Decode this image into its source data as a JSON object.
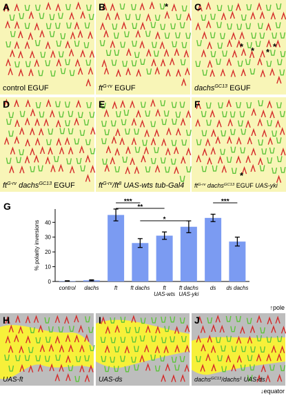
{
  "panels": [
    {
      "letter": "A",
      "caption": [
        {
          "text": "control EGUF",
          "italic": false,
          "sup": false
        }
      ]
    },
    {
      "letter": "B",
      "caption": [
        {
          "text": "ft",
          "italic": true,
          "sup": false
        },
        {
          "text": "G-rv",
          "italic": true,
          "sup": true
        },
        {
          "text": " EGUF",
          "italic": false,
          "sup": false
        }
      ],
      "stars": [
        "*"
      ]
    },
    {
      "letter": "C",
      "caption": [
        {
          "text": "dachs",
          "italic": true,
          "sup": false
        },
        {
          "text": "GC13",
          "italic": true,
          "sup": true
        },
        {
          "text": " EGUF",
          "italic": false,
          "sup": false
        }
      ],
      "stars": [
        "*",
        "*",
        "*",
        "*"
      ]
    },
    {
      "letter": "D",
      "caption": [
        {
          "text": "ft",
          "italic": true,
          "sup": false
        },
        {
          "text": "G-rv",
          "italic": true,
          "sup": true
        },
        {
          "text": " dachs",
          "italic": true,
          "sup": false
        },
        {
          "text": "GC13",
          "italic": true,
          "sup": true
        },
        {
          "text": " EGUF",
          "italic": false,
          "sup": false
        }
      ]
    },
    {
      "letter": "E",
      "caption": [
        {
          "text": "ft",
          "italic": true,
          "sup": false
        },
        {
          "text": "G-rv",
          "italic": true,
          "sup": true
        },
        {
          "text": "/ft",
          "italic": true,
          "sup": false
        },
        {
          "text": "8",
          "italic": true,
          "sup": true
        },
        {
          "text": " UAS-wts tub-Gal4",
          "italic": true,
          "sup": false
        }
      ]
    },
    {
      "letter": "F",
      "caption": [
        {
          "text": "ft",
          "italic": true,
          "sup": false
        },
        {
          "text": "G-rv",
          "italic": true,
          "sup": true
        },
        {
          "text": " dachs",
          "italic": true,
          "sup": false
        },
        {
          "text": "GC13",
          "italic": true,
          "sup": true
        },
        {
          "text": " EGUF ",
          "italic": false,
          "sup": false
        },
        {
          "text": "UAS-yki",
          "italic": true,
          "sup": false
        }
      ],
      "stars": [
        "*"
      ]
    }
  ],
  "chart_letter": "G",
  "chart_data": {
    "type": "bar",
    "ylabel": "% polarity inversions",
    "categories": [
      [
        "control"
      ],
      [
        "dachs"
      ],
      [
        "ft"
      ],
      [
        "ft dachs"
      ],
      [
        "ft",
        "UAS-wts"
      ],
      [
        "ft dachs",
        "UAS-yki"
      ],
      [
        "ds"
      ],
      [
        "ds dachs"
      ]
    ],
    "values": [
      0.3,
      0.8,
      45,
      26,
      31,
      37,
      43,
      27
    ],
    "errors": [
      0.2,
      0.3,
      4,
      3,
      2.5,
      4,
      2.5,
      3
    ],
    "color": "#7b9bf2",
    "ylim": [
      0,
      49
    ],
    "yticks": [
      0,
      10,
      20,
      30,
      40
    ],
    "significance": [
      {
        "from": 2,
        "to": 3,
        "label": "***"
      },
      {
        "from": 2,
        "to": 4,
        "label": "**"
      },
      {
        "from": 3,
        "to": 5,
        "label": "*"
      },
      {
        "from": 6,
        "to": 7,
        "label": "***"
      }
    ]
  },
  "bottom_panels": [
    {
      "letter": "H",
      "caption": [
        {
          "text": "UAS-ft",
          "italic": true,
          "sup": false
        }
      ]
    },
    {
      "letter": "I",
      "caption": [
        {
          "text": "UAS-ds",
          "italic": true,
          "sup": false
        }
      ]
    },
    {
      "letter": "J",
      "caption": [
        {
          "text": "dachs",
          "italic": true,
          "sup": false
        },
        {
          "text": "GC13",
          "italic": true,
          "sup": true
        },
        {
          "text": "/dachs",
          "italic": true,
          "sup": false
        },
        {
          "text": "1",
          "italic": true,
          "sup": true
        },
        {
          "text": " UAS-ds",
          "italic": true,
          "sup": false
        }
      ]
    }
  ],
  "pole": "↑pole",
  "equator": "↓equator"
}
